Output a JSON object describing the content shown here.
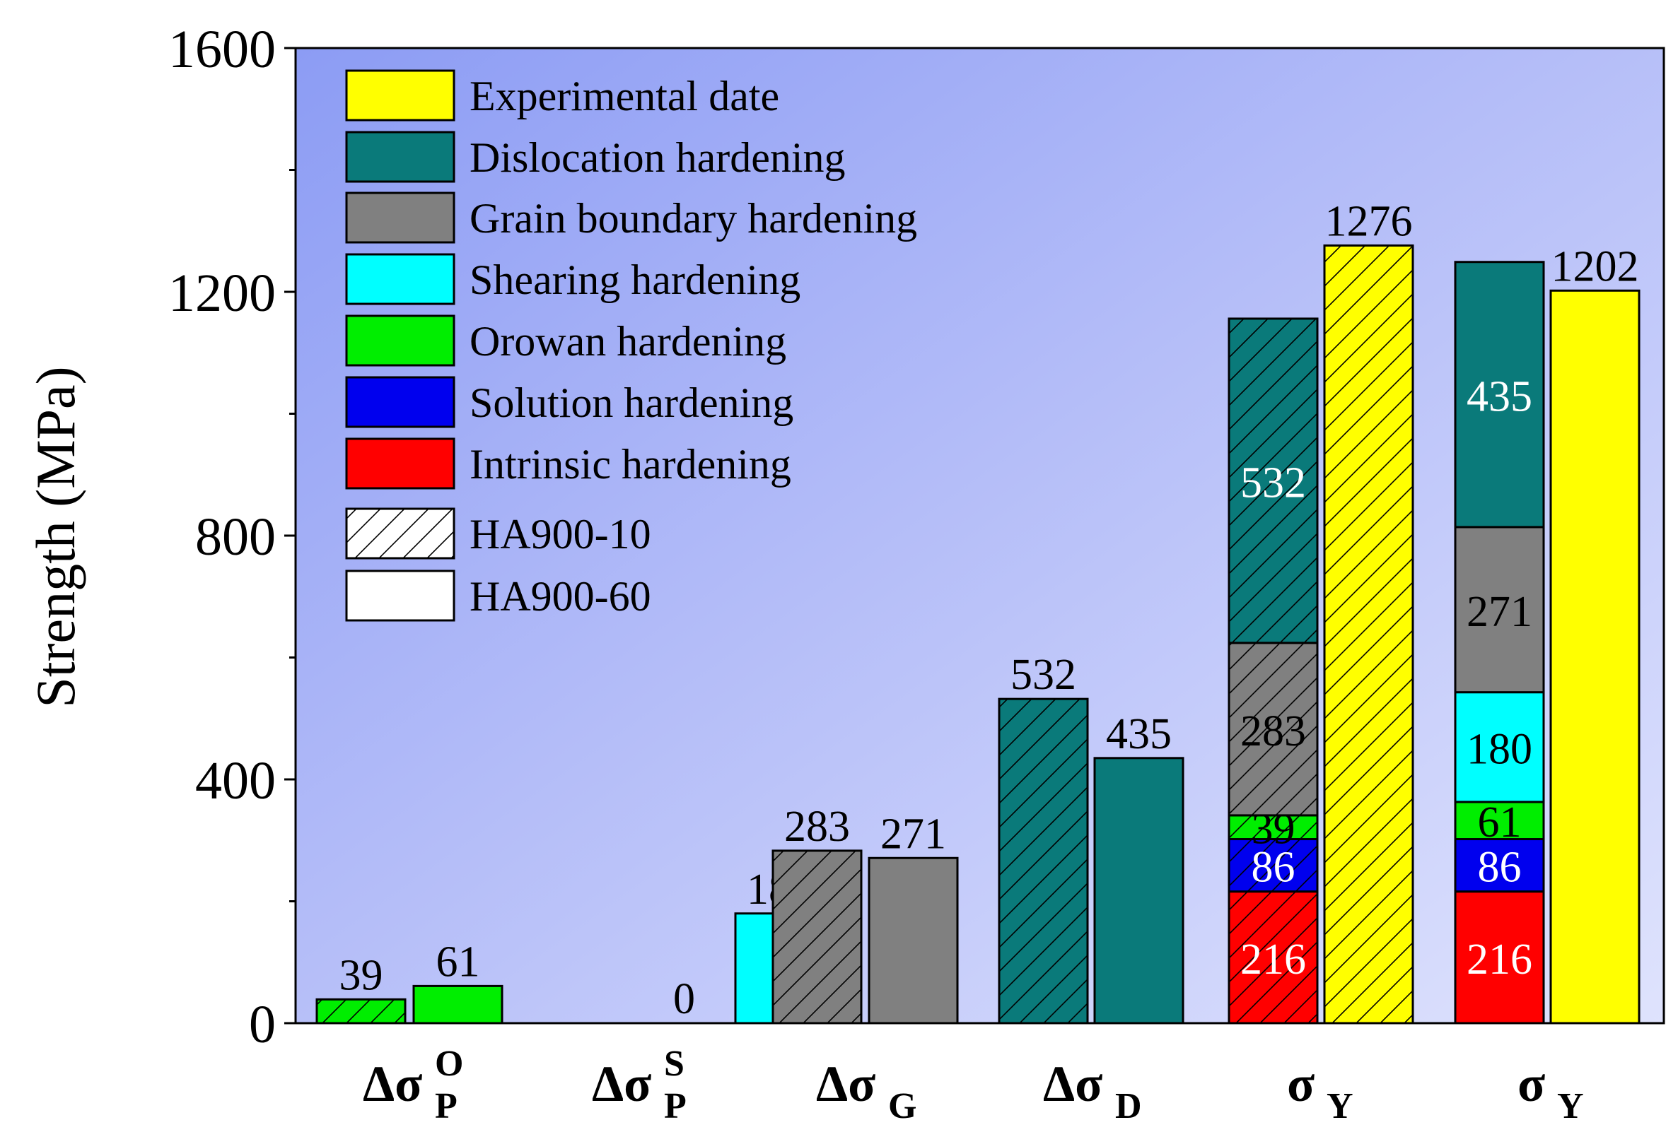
{
  "chart_data": {
    "type": "bar",
    "ylabel": "Strength (MPa)",
    "ylim": [
      0,
      1600
    ],
    "yticks": [
      0,
      400,
      800,
      1200,
      1600
    ],
    "colors": {
      "experimental": "#ffff00",
      "dislocation": "#0a7a7a",
      "grain_boundary": "#808080",
      "shearing": "#00ffff",
      "orowan": "#00ee00",
      "solution": "#0000ee",
      "intrinsic": "#ff0000"
    },
    "legend": {
      "placement": "top-left",
      "entries": [
        {
          "label": "Experimental date",
          "key": "experimental"
        },
        {
          "label": "Dislocation hardening",
          "key": "dislocation"
        },
        {
          "label": "Grain boundary hardening",
          "key": "grain_boundary"
        },
        {
          "label": "Shearing hardening",
          "key": "shearing"
        },
        {
          "label": "Orowan hardening",
          "key": "orowan"
        },
        {
          "label": "Solution hardening",
          "key": "solution"
        },
        {
          "label": "Intrinsic hardening",
          "key": "intrinsic"
        },
        {
          "label": "HA900-10",
          "pattern": "hatched"
        },
        {
          "label": "HA900-60",
          "pattern": "plain"
        }
      ]
    },
    "categories": [
      {
        "main": "Δσ",
        "sub": "P",
        "sup": "O"
      },
      {
        "main": "Δσ",
        "sub": "P",
        "sup": "S"
      },
      {
        "main": "Δσ",
        "sub": "G",
        "sup": ""
      },
      {
        "main": "Δσ",
        "sub": "D",
        "sup": ""
      },
      {
        "main": "σ",
        "sub": "Y",
        "sup": ""
      },
      {
        "main": "σ",
        "sub": "Y",
        "sup": ""
      }
    ],
    "bars": [
      {
        "category": 0,
        "sample": "HA900-10",
        "hatched": true,
        "segments": [
          {
            "key": "orowan",
            "value": 39
          }
        ],
        "top_label": "39"
      },
      {
        "category": 0,
        "sample": "HA900-60",
        "hatched": false,
        "segments": [
          {
            "key": "orowan",
            "value": 61
          }
        ],
        "top_label": "61"
      },
      {
        "category": 1,
        "sample": "HA900-10",
        "hatched": true,
        "segments": [
          {
            "key": "shearing",
            "value": 0
          }
        ],
        "top_label": "0"
      },
      {
        "category": 1,
        "sample": "HA900-60",
        "hatched": false,
        "segments": [
          {
            "key": "shearing",
            "value": 180
          }
        ],
        "top_label": "180"
      },
      {
        "category": 2,
        "sample": "HA900-10",
        "hatched": true,
        "segments": [
          {
            "key": "grain_boundary",
            "value": 283
          }
        ],
        "top_label": "283"
      },
      {
        "category": 2,
        "sample": "HA900-60",
        "hatched": false,
        "segments": [
          {
            "key": "grain_boundary",
            "value": 271
          }
        ],
        "top_label": "271"
      },
      {
        "category": 3,
        "sample": "HA900-10",
        "hatched": true,
        "segments": [
          {
            "key": "dislocation",
            "value": 532
          }
        ],
        "top_label": "532"
      },
      {
        "category": 3,
        "sample": "HA900-60",
        "hatched": false,
        "segments": [
          {
            "key": "dislocation",
            "value": 435
          }
        ],
        "top_label": "435"
      },
      {
        "category": 4,
        "sample": "HA900-10",
        "hatched": true,
        "segments": [
          {
            "key": "intrinsic",
            "value": 216,
            "label": "216",
            "label_color": "#ffffff"
          },
          {
            "key": "solution",
            "value": 86,
            "label": "86",
            "label_color": "#ffffff"
          },
          {
            "key": "orowan",
            "value": 39,
            "label": "39",
            "label_color": "#000000"
          },
          {
            "key": "grain_boundary",
            "value": 283,
            "label": "283",
            "label_color": "#000000"
          },
          {
            "key": "dislocation",
            "value": 532,
            "label": "532",
            "label_color": "#ffffff"
          }
        ],
        "top_label": ""
      },
      {
        "category": 4,
        "sample": "HA900-10",
        "hatched": true,
        "segments": [
          {
            "key": "experimental",
            "value": 1276
          }
        ],
        "top_label": "1276"
      },
      {
        "category": 5,
        "sample": "HA900-60",
        "hatched": false,
        "segments": [
          {
            "key": "intrinsic",
            "value": 216,
            "label": "216",
            "label_color": "#ffffff"
          },
          {
            "key": "solution",
            "value": 86,
            "label": "86",
            "label_color": "#ffffff"
          },
          {
            "key": "orowan",
            "value": 61,
            "label": "61",
            "label_color": "#000000"
          },
          {
            "key": "shearing",
            "value": 180,
            "label": "180",
            "label_color": "#000000"
          },
          {
            "key": "grain_boundary",
            "value": 271,
            "label": "271",
            "label_color": "#000000"
          },
          {
            "key": "dislocation",
            "value": 435,
            "label": "435",
            "label_color": "#ffffff"
          }
        ],
        "top_label": ""
      },
      {
        "category": 5,
        "sample": "HA900-60",
        "hatched": false,
        "segments": [
          {
            "key": "experimental",
            "value": 1202
          }
        ],
        "top_label": "1202"
      }
    ]
  }
}
